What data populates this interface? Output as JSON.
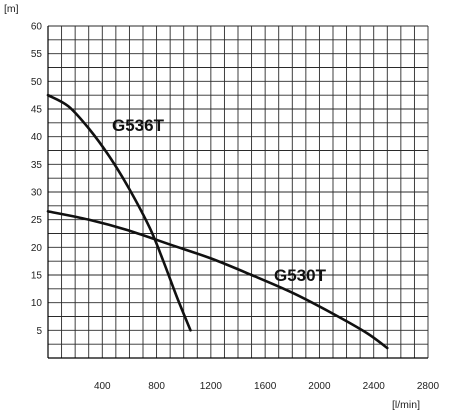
{
  "chart_data": {
    "type": "line",
    "title": "",
    "ylabel": "[m]",
    "xlabel": "[l/min]",
    "xlim": [
      0,
      2800
    ],
    "ylim": [
      0,
      60
    ],
    "grid": true,
    "x_minor_step": 100,
    "y_minor_step": 2.5,
    "x_ticks": [
      400,
      800,
      1200,
      1600,
      2000,
      2400,
      2800
    ],
    "x_tick_labels": [
      "400",
      "800",
      "1200",
      "1600",
      "2000",
      "2400",
      "2800"
    ],
    "y_ticks": [
      5,
      10,
      15,
      20,
      25,
      30,
      35,
      40,
      45,
      50,
      55,
      60
    ],
    "y_tick_labels": [
      "5",
      "10",
      "15",
      "20",
      "25",
      "30",
      "35",
      "40",
      "45",
      "50",
      "55",
      "60"
    ],
    "series": [
      {
        "name": "G536T",
        "x": [
          0,
          150,
          300,
          450,
          600,
          750,
          850,
          950,
          1050
        ],
        "y": [
          47.5,
          45.5,
          41.5,
          36.5,
          30.5,
          23.5,
          17.5,
          11,
          5
        ]
      },
      {
        "name": "G530T",
        "x": [
          0,
          300,
          600,
          900,
          1200,
          1500,
          1800,
          2100,
          2350,
          2500
        ],
        "y": [
          26.5,
          25,
          23,
          20.5,
          18,
          15,
          11.8,
          8,
          4.5,
          1.8
        ]
      }
    ]
  }
}
